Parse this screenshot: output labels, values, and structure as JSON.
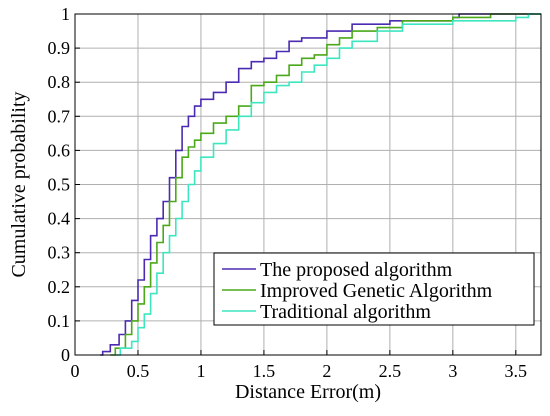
{
  "chart_data": {
    "type": "line",
    "xlabel": "Distance Error(m)",
    "ylabel": "Cumulative probability",
    "xlim": [
      0,
      3.7
    ],
    "ylim": [
      0,
      1
    ],
    "xticks": [
      "0",
      "0.5",
      "1",
      "1.5",
      "2",
      "2.5",
      "3",
      "3.5"
    ],
    "yticks": [
      "0",
      "0.1",
      "0.2",
      "0.3",
      "0.4",
      "0.5",
      "0.6",
      "0.7",
      "0.8",
      "0.9",
      "1"
    ],
    "grid": true,
    "legend_position": "bottom-right",
    "series": [
      {
        "name": "The proposed algorithm",
        "color": "#4b2bb0",
        "points": [
          [
            0.2,
            0
          ],
          [
            0.22,
            0.01
          ],
          [
            0.28,
            0.03
          ],
          [
            0.35,
            0.06
          ],
          [
            0.4,
            0.1
          ],
          [
            0.45,
            0.16
          ],
          [
            0.5,
            0.22
          ],
          [
            0.55,
            0.28
          ],
          [
            0.6,
            0.35
          ],
          [
            0.65,
            0.4
          ],
          [
            0.7,
            0.45
          ],
          [
            0.75,
            0.52
          ],
          [
            0.8,
            0.6
          ],
          [
            0.85,
            0.67
          ],
          [
            0.9,
            0.7
          ],
          [
            0.95,
            0.73
          ],
          [
            1.0,
            0.75
          ],
          [
            1.1,
            0.77
          ],
          [
            1.2,
            0.8
          ],
          [
            1.3,
            0.84
          ],
          [
            1.4,
            0.86
          ],
          [
            1.5,
            0.87
          ],
          [
            1.6,
            0.89
          ],
          [
            1.7,
            0.92
          ],
          [
            1.8,
            0.93
          ],
          [
            2.0,
            0.95
          ],
          [
            2.2,
            0.97
          ],
          [
            2.5,
            0.98
          ],
          [
            3.0,
            0.99
          ],
          [
            3.05,
            1.0
          ],
          [
            3.7,
            1.0
          ]
        ]
      },
      {
        "name": " Improved Genetic Algorithm",
        "color": "#4aa81a",
        "points": [
          [
            0.28,
            0
          ],
          [
            0.32,
            0.02
          ],
          [
            0.4,
            0.06
          ],
          [
            0.45,
            0.1
          ],
          [
            0.5,
            0.15
          ],
          [
            0.55,
            0.2
          ],
          [
            0.6,
            0.27
          ],
          [
            0.65,
            0.33
          ],
          [
            0.7,
            0.38
          ],
          [
            0.75,
            0.45
          ],
          [
            0.8,
            0.52
          ],
          [
            0.85,
            0.58
          ],
          [
            0.9,
            0.61
          ],
          [
            0.95,
            0.63
          ],
          [
            1.0,
            0.65
          ],
          [
            1.1,
            0.68
          ],
          [
            1.2,
            0.7
          ],
          [
            1.3,
            0.73
          ],
          [
            1.4,
            0.79
          ],
          [
            1.5,
            0.8
          ],
          [
            1.6,
            0.82
          ],
          [
            1.7,
            0.85
          ],
          [
            1.8,
            0.87
          ],
          [
            1.9,
            0.88
          ],
          [
            2.0,
            0.91
          ],
          [
            2.1,
            0.93
          ],
          [
            2.2,
            0.95
          ],
          [
            2.4,
            0.96
          ],
          [
            2.6,
            0.98
          ],
          [
            3.0,
            0.99
          ],
          [
            3.3,
            1.0
          ],
          [
            3.7,
            1.0
          ]
        ]
      },
      {
        "name": "Traditional algorithm",
        "color": "#3ee6c0",
        "points": [
          [
            0.32,
            0
          ],
          [
            0.36,
            0.02
          ],
          [
            0.45,
            0.04
          ],
          [
            0.5,
            0.08
          ],
          [
            0.55,
            0.12
          ],
          [
            0.6,
            0.18
          ],
          [
            0.65,
            0.24
          ],
          [
            0.7,
            0.3
          ],
          [
            0.75,
            0.35
          ],
          [
            0.8,
            0.4
          ],
          [
            0.85,
            0.45
          ],
          [
            0.9,
            0.5
          ],
          [
            0.95,
            0.54
          ],
          [
            1.0,
            0.58
          ],
          [
            1.1,
            0.62
          ],
          [
            1.2,
            0.66
          ],
          [
            1.3,
            0.7
          ],
          [
            1.4,
            0.74
          ],
          [
            1.5,
            0.77
          ],
          [
            1.6,
            0.79
          ],
          [
            1.7,
            0.8
          ],
          [
            1.8,
            0.83
          ],
          [
            1.9,
            0.85
          ],
          [
            2.0,
            0.87
          ],
          [
            2.1,
            0.9
          ],
          [
            2.2,
            0.92
          ],
          [
            2.4,
            0.95
          ],
          [
            2.6,
            0.97
          ],
          [
            3.0,
            0.98
          ],
          [
            3.5,
            0.99
          ],
          [
            3.6,
            1.0
          ],
          [
            3.7,
            1.0
          ]
        ]
      }
    ]
  }
}
